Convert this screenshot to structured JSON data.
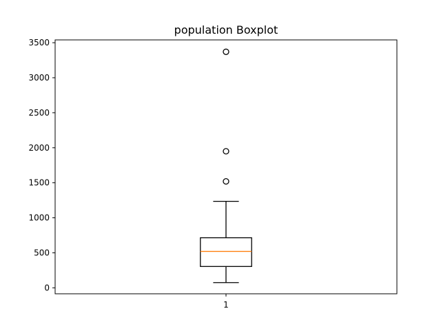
{
  "chart_data": {
    "type": "box",
    "title": "population Boxplot",
    "xlabel": "",
    "ylabel": "",
    "ylim": [
      -85,
      3540
    ],
    "yticks": [
      0,
      500,
      1000,
      1500,
      2000,
      2500,
      3000,
      3500
    ],
    "categories": [
      "1"
    ],
    "boxes": [
      {
        "category": "1",
        "whisker_low": 75,
        "q1": 305,
        "median": 520,
        "q3": 715,
        "whisker_high": 1235,
        "outliers": [
          1520,
          1950,
          3370
        ]
      }
    ],
    "grid": false,
    "colors": {
      "median": "#ff7f0e",
      "box": "#000000",
      "outlier": "#000000"
    }
  }
}
